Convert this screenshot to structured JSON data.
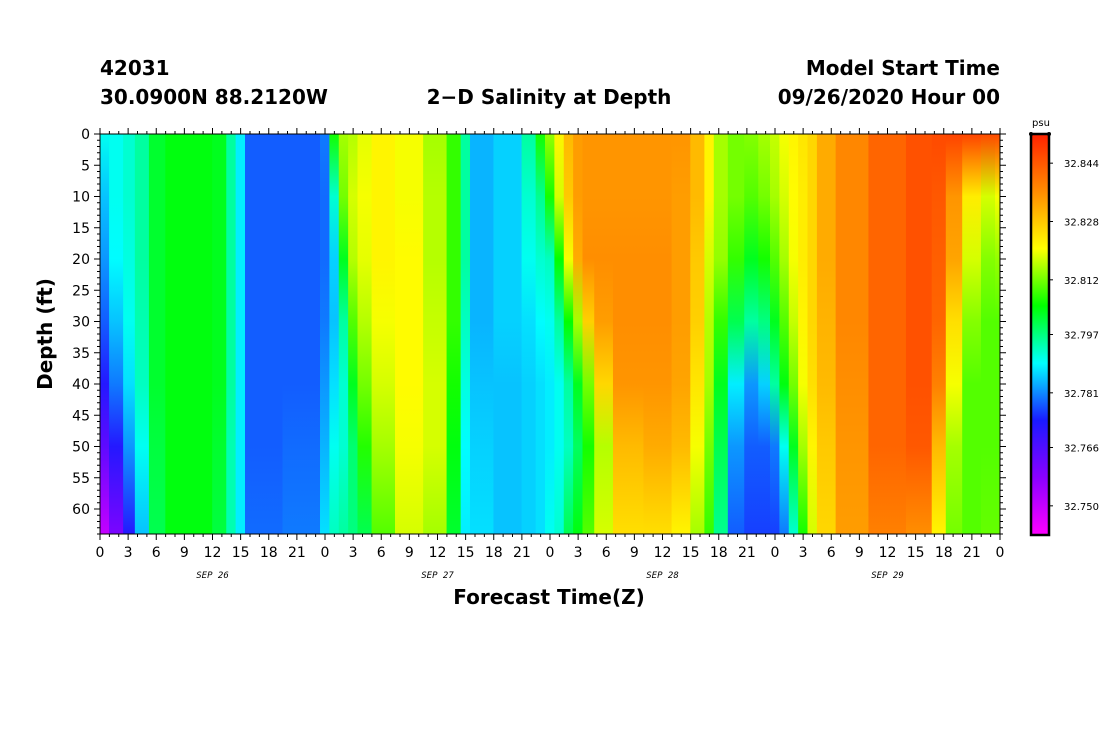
{
  "header": {
    "station_id": "42031",
    "location": "30.0900N 88.2120W",
    "title": "2−D Salinity at Depth",
    "start_label": "Model Start Time",
    "start_time": "09/26/2020 Hour 00"
  },
  "colors": {
    "scale": [
      "#ff00ff",
      "#8b00ff",
      "#1a1aff",
      "#00ffff",
      "#00ff00",
      "#ffff00",
      "#ff8c00",
      "#ff2200"
    ]
  },
  "chart_data": {
    "type": "heatmap",
    "title": "2−D Salinity at Depth",
    "xlabel": "Forecast Time(Z)",
    "ylabel": "Depth (ft)",
    "x_unit": "hours since 09/26/2020 00Z",
    "xlim": [
      0,
      96
    ],
    "ylim": [
      0,
      64
    ],
    "y_inverted": true,
    "x_ticks": [
      0,
      3,
      6,
      9,
      12,
      15,
      18,
      21,
      24,
      27,
      30,
      33,
      36,
      39,
      42,
      45,
      48,
      51,
      54,
      57,
      60,
      63,
      66,
      69,
      72,
      75,
      78,
      81,
      84,
      87,
      90,
      93,
      96
    ],
    "x_tick_labels": [
      "0",
      "3",
      "6",
      "9",
      "12",
      "15",
      "18",
      "21",
      "0",
      "3",
      "6",
      "9",
      "12",
      "15",
      "18",
      "21",
      "0",
      "3",
      "6",
      "9",
      "12",
      "15",
      "18",
      "21",
      "0",
      "3",
      "6",
      "9",
      "12",
      "15",
      "18",
      "21",
      "0"
    ],
    "day_labels": [
      {
        "label": "SEP 26",
        "x": 12
      },
      {
        "label": "SEP 27",
        "x": 36
      },
      {
        "label": "SEP 28",
        "x": 60
      },
      {
        "label": "SEP 29",
        "x": 84
      }
    ],
    "y_ticks": [
      0,
      5,
      10,
      15,
      20,
      25,
      30,
      35,
      40,
      45,
      50,
      55,
      60
    ],
    "colorbar": {
      "unit": "psu",
      "min": 32.742,
      "max": 32.852,
      "tick_values": [
        32.75,
        32.766,
        32.781,
        32.797,
        32.812,
        32.828,
        32.844
      ],
      "tick_labels": [
        "32.750",
        "32.766",
        "32.781",
        "32.797",
        "32.812",
        "32.828",
        "32.844"
      ]
    },
    "depths": [
      0,
      10,
      20,
      30,
      40,
      50,
      64
    ],
    "time_bands": [
      {
        "x": 0,
        "values": [
          32.79,
          32.785,
          32.782,
          32.778,
          32.772,
          32.764,
          32.75
        ]
      },
      {
        "x": 2,
        "values": [
          32.79,
          32.79,
          32.789,
          32.785,
          32.78,
          32.772,
          32.76
        ]
      },
      {
        "x": 3,
        "values": [
          32.792,
          32.792,
          32.791,
          32.79,
          32.787,
          32.782,
          32.772
        ]
      },
      {
        "x": 4.5,
        "values": [
          32.795,
          32.795,
          32.795,
          32.794,
          32.793,
          32.79,
          32.785
        ]
      },
      {
        "x": 6,
        "values": [
          32.802,
          32.802,
          32.802,
          32.802,
          32.802,
          32.801,
          32.8
        ]
      },
      {
        "x": 8,
        "values": [
          32.804,
          32.804,
          32.804,
          32.804,
          32.804,
          32.804,
          32.804
        ]
      },
      {
        "x": 11,
        "values": [
          32.804,
          32.804,
          32.804,
          32.804,
          32.804,
          32.804,
          32.804
        ]
      },
      {
        "x": 13,
        "values": [
          32.803,
          32.803,
          32.803,
          32.803,
          32.803,
          32.802,
          32.801
        ]
      },
      {
        "x": 14,
        "values": [
          32.795,
          32.795,
          32.795,
          32.795,
          32.795,
          32.794,
          32.794
        ]
      },
      {
        "x": 15,
        "values": [
          32.788,
          32.788,
          32.788,
          32.788,
          32.788,
          32.788,
          32.788
        ]
      },
      {
        "x": 16,
        "values": [
          32.778,
          32.778,
          32.778,
          32.778,
          32.778,
          32.778,
          32.779
        ]
      },
      {
        "x": 23,
        "values": [
          32.778,
          32.778,
          32.778,
          32.778,
          32.778,
          32.779,
          32.78
        ]
      },
      {
        "x": 24,
        "values": [
          32.78,
          32.779,
          32.779,
          32.78,
          32.782,
          32.784,
          32.787
        ]
      },
      {
        "x": 25,
        "values": [
          32.806,
          32.792,
          32.786,
          32.785,
          32.787,
          32.79,
          32.793
        ]
      },
      {
        "x": 26,
        "values": [
          32.815,
          32.812,
          32.803,
          32.795,
          32.792,
          32.792,
          32.795
        ]
      },
      {
        "x": 27,
        "values": [
          32.816,
          32.818,
          32.816,
          32.81,
          32.803,
          32.798,
          32.797
        ]
      },
      {
        "x": 28,
        "values": [
          32.819,
          32.82,
          32.819,
          32.816,
          32.812,
          32.807,
          32.8
        ]
      },
      {
        "x": 30,
        "values": [
          32.822,
          32.822,
          32.822,
          32.82,
          32.818,
          32.815,
          32.81
        ]
      },
      {
        "x": 33,
        "values": [
          32.82,
          32.82,
          32.821,
          32.821,
          32.821,
          32.82,
          32.818
        ]
      },
      {
        "x": 36,
        "values": [
          32.815,
          32.816,
          32.816,
          32.817,
          32.818,
          32.818,
          32.815
        ]
      },
      {
        "x": 38,
        "values": [
          32.808,
          32.808,
          32.808,
          32.808,
          32.806,
          32.804,
          32.802
        ]
      },
      {
        "x": 39,
        "values": [
          32.795,
          32.795,
          32.795,
          32.793,
          32.791,
          32.789,
          32.788
        ]
      },
      {
        "x": 40,
        "values": [
          32.784,
          32.784,
          32.784,
          32.784,
          32.785,
          32.786,
          32.787
        ]
      },
      {
        "x": 44,
        "values": [
          32.786,
          32.786,
          32.786,
          32.786,
          32.785,
          32.785,
          32.785
        ]
      },
      {
        "x": 46,
        "values": [
          32.795,
          32.792,
          32.79,
          32.787,
          32.786,
          32.786,
          32.786
        ]
      },
      {
        "x": 47,
        "values": [
          32.806,
          32.796,
          32.792,
          32.789,
          32.787,
          32.787,
          32.787
        ]
      },
      {
        "x": 48,
        "values": [
          32.814,
          32.806,
          32.793,
          32.79,
          32.788,
          32.788,
          32.79
        ]
      },
      {
        "x": 49,
        "values": [
          32.822,
          32.818,
          32.805,
          32.795,
          32.79,
          32.79,
          32.792
        ]
      },
      {
        "x": 50,
        "values": [
          32.83,
          32.828,
          32.82,
          32.805,
          32.795,
          32.793,
          32.8
        ]
      },
      {
        "x": 51,
        "values": [
          32.834,
          32.834,
          32.832,
          32.815,
          32.803,
          32.799,
          32.804
        ]
      },
      {
        "x": 52,
        "values": [
          32.835,
          32.835,
          32.836,
          32.827,
          32.812,
          32.806,
          32.81
        ]
      },
      {
        "x": 53.5,
        "values": [
          32.835,
          32.835,
          32.836,
          32.834,
          32.826,
          32.816,
          32.818
        ]
      },
      {
        "x": 56,
        "values": [
          32.835,
          32.835,
          32.836,
          32.836,
          32.835,
          32.83,
          32.825
        ]
      },
      {
        "x": 60,
        "values": [
          32.835,
          32.835,
          32.836,
          32.836,
          32.835,
          32.832,
          32.825
        ]
      },
      {
        "x": 62,
        "values": [
          32.835,
          32.834,
          32.834,
          32.834,
          32.833,
          32.83,
          32.822
        ]
      },
      {
        "x": 64,
        "values": [
          32.83,
          32.83,
          32.828,
          32.827,
          32.824,
          32.82,
          32.815
        ]
      },
      {
        "x": 65,
        "values": [
          32.822,
          32.822,
          32.818,
          32.816,
          32.815,
          32.812,
          32.808
        ]
      },
      {
        "x": 66,
        "values": [
          32.815,
          32.815,
          32.814,
          32.808,
          32.803,
          32.8,
          32.796
        ]
      },
      {
        "x": 68,
        "values": [
          32.812,
          32.812,
          32.808,
          32.8,
          32.788,
          32.782,
          32.778
        ]
      },
      {
        "x": 69.5,
        "values": [
          32.813,
          32.81,
          32.803,
          32.795,
          32.782,
          32.778,
          32.776
        ]
      },
      {
        "x": 71,
        "values": [
          32.815,
          32.812,
          32.806,
          32.797,
          32.786,
          32.778,
          32.776
        ]
      },
      {
        "x": 72,
        "values": [
          32.817,
          32.815,
          32.81,
          32.803,
          32.795,
          32.78,
          32.776
        ]
      },
      {
        "x": 73,
        "values": [
          32.82,
          32.818,
          32.815,
          32.81,
          32.804,
          32.79,
          32.78
        ]
      },
      {
        "x": 74,
        "values": [
          32.822,
          32.821,
          32.82,
          32.817,
          32.812,
          32.803,
          32.792
        ]
      },
      {
        "x": 75,
        "values": [
          32.824,
          32.823,
          32.823,
          32.822,
          32.82,
          32.815,
          32.806
        ]
      },
      {
        "x": 76,
        "values": [
          32.826,
          32.826,
          32.826,
          32.826,
          32.825,
          32.822,
          32.818
        ]
      },
      {
        "x": 77,
        "values": [
          32.832,
          32.832,
          32.832,
          32.831,
          32.83,
          32.828,
          32.826
        ]
      },
      {
        "x": 80,
        "values": [
          32.837,
          32.837,
          32.837,
          32.837,
          32.836,
          32.835,
          32.834
        ]
      },
      {
        "x": 84,
        "values": [
          32.842,
          32.842,
          32.842,
          32.842,
          32.842,
          32.842,
          32.838
        ]
      },
      {
        "x": 88,
        "values": [
          32.845,
          32.845,
          32.845,
          32.845,
          32.845,
          32.844,
          32.836
        ]
      },
      {
        "x": 89.5,
        "values": [
          32.846,
          32.844,
          32.843,
          32.842,
          32.838,
          32.83,
          32.822
        ]
      },
      {
        "x": 91,
        "values": [
          32.847,
          32.835,
          32.833,
          32.825,
          32.82,
          32.815,
          32.812
        ]
      },
      {
        "x": 93,
        "values": [
          32.847,
          32.823,
          32.818,
          32.813,
          32.81,
          32.81,
          32.81
        ]
      },
      {
        "x": 95,
        "values": [
          32.846,
          32.818,
          32.813,
          32.81,
          32.81,
          32.81,
          32.811
        ]
      },
      {
        "x": 96,
        "values": [
          32.846,
          32.82,
          32.814,
          32.81,
          32.81,
          32.81,
          32.811
        ]
      }
    ]
  }
}
